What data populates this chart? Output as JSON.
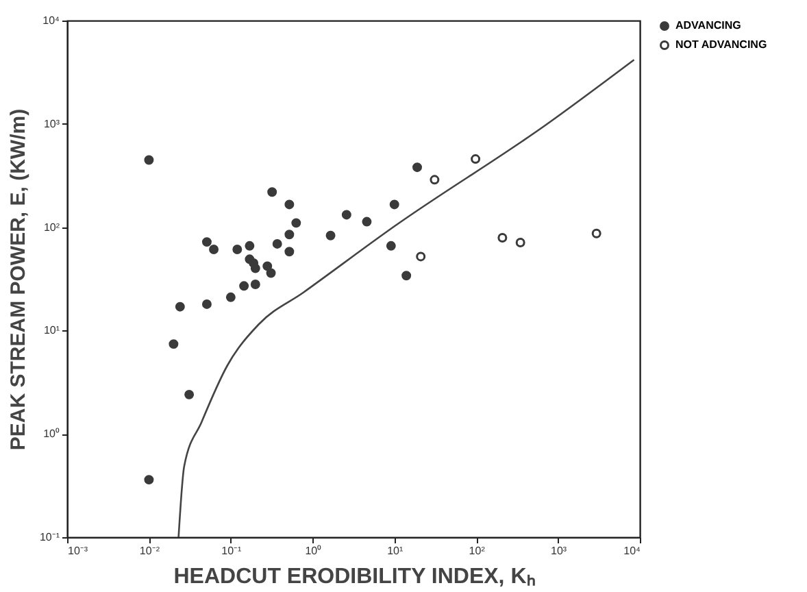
{
  "chart_data": {
    "type": "scatter",
    "xlabel": "HEADCUT ERODIBILITY INDEX, Kₕ",
    "ylabel": "PEAK STREAM POWER, E, (KW/m)",
    "log": "xy",
    "grid": false,
    "legend": "right",
    "marker": "circle",
    "xlim": [
      0.001,
      10000
    ],
    "ylim": [
      0.1,
      10000
    ],
    "xticks": [
      {
        "value": 0.001,
        "label": "10⁻³"
      },
      {
        "value": 0.01,
        "label": "10⁻²"
      },
      {
        "value": 0.1,
        "label": "10⁻¹"
      },
      {
        "value": 1,
        "label": "10⁰"
      },
      {
        "value": 10,
        "label": "10¹"
      },
      {
        "value": 100,
        "label": "10²"
      },
      {
        "value": 1000,
        "label": "10³"
      },
      {
        "value": 10000,
        "label": "10⁴"
      }
    ],
    "yticks": [
      {
        "value": 0.1,
        "label": "10⁻¹"
      },
      {
        "value": 1,
        "label": "10⁰"
      },
      {
        "value": 10,
        "label": "10¹"
      },
      {
        "value": 100,
        "label": "10²"
      },
      {
        "value": 1000,
        "label": "10³"
      },
      {
        "value": 10000,
        "label": "10⁴"
      }
    ],
    "series": [
      {
        "name": "ADVANCING",
        "color": "#3a3a3a",
        "x": [
          0.01,
          0.32,
          0.52,
          0.63,
          0.52,
          0.37,
          0.52,
          0.051,
          0.062,
          0.12,
          0.17,
          0.17,
          0.19,
          0.2,
          0.28,
          0.31,
          0.2,
          0.145,
          0.1,
          0.051,
          0.024,
          0.02,
          0.031,
          1.66,
          2.6,
          4.6,
          10,
          9.1,
          19,
          14,
          0.01
        ],
        "values": [
          447,
          219,
          166,
          110,
          85,
          69,
          58,
          72,
          61,
          61,
          66,
          49,
          45,
          40,
          42,
          36,
          28,
          27,
          21,
          18,
          17,
          7.4,
          2.4,
          83,
          132,
          113,
          166,
          66,
          380,
          34,
          0.36
        ]
      },
      {
        "name": "NOT ADVANCING",
        "color": "#ffffff",
        "x": [
          21,
          31,
          98,
          209,
          347,
          2950
        ],
        "values": [
          52,
          288,
          457,
          79,
          71,
          87
        ]
      },
      {
        "type": "line",
        "marker": "none",
        "color": "#444444",
        "x": [
          0.023,
          0.027,
          0.044,
          0.091,
          0.22,
          0.78,
          10,
          740,
          8500
        ],
        "values": [
          0.1,
          0.49,
          1.3,
          4.6,
          11.5,
          23.5,
          102,
          1000,
          4170
        ]
      }
    ]
  }
}
